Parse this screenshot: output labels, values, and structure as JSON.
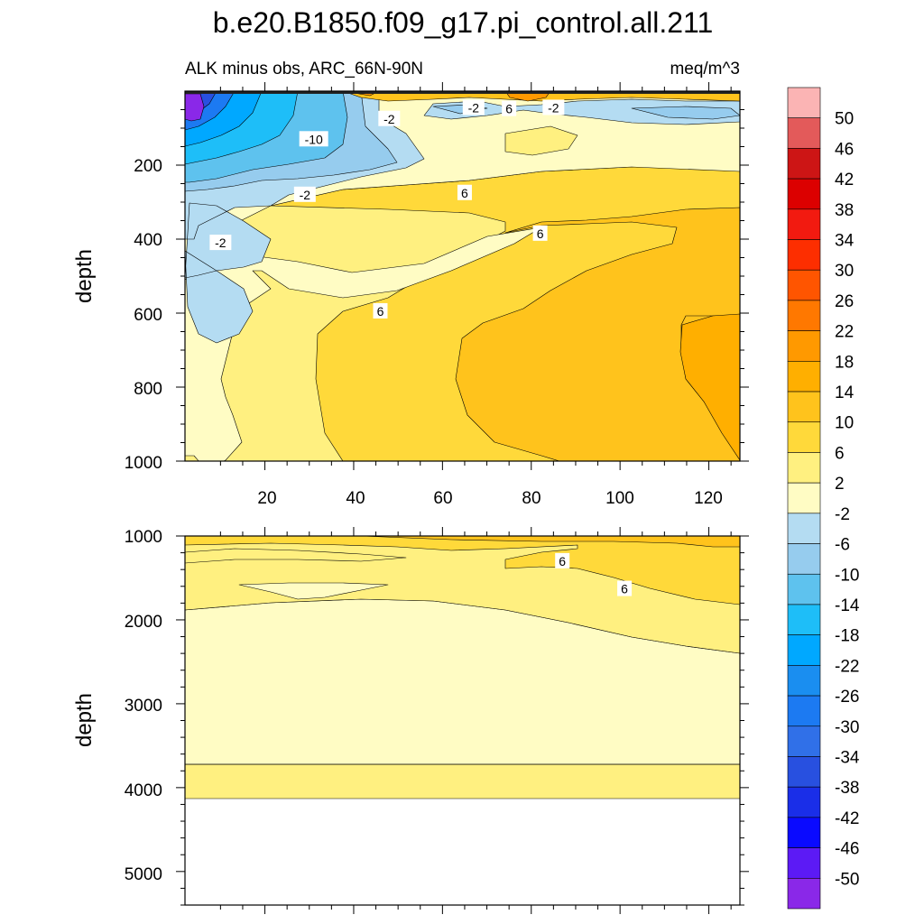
{
  "title": "b.e20.B1850.f09_g17.pi_control.all.211",
  "subtitle_left": "ALK minus obs, ARC_66N-90N",
  "subtitle_right": "meq/m^3",
  "chart_data": [
    {
      "type": "heatmap",
      "panel": "upper",
      "ylabel": "depth",
      "xlim": [
        2,
        127
      ],
      "ylim": [
        1000,
        0
      ],
      "x_ticks": [
        "20",
        "40",
        "60",
        "80",
        "100",
        "120"
      ],
      "y_ticks": [
        "200",
        "400",
        "600",
        "800",
        "1000"
      ],
      "contour_labels": [
        {
          "text": "-2",
          "x": 67,
          "y": 45
        },
        {
          "text": "6",
          "x": 75,
          "y": 48
        },
        {
          "text": "-2",
          "x": 85,
          "y": 45
        },
        {
          "text": "-2",
          "x": 48,
          "y": 75
        },
        {
          "text": "-10",
          "x": 31,
          "y": 130
        },
        {
          "text": "6",
          "x": 65,
          "y": 275
        },
        {
          "text": "-2",
          "x": 29,
          "y": 280
        },
        {
          "text": "6",
          "x": 82,
          "y": 385
        },
        {
          "text": "-2",
          "x": 10,
          "y": 410
        },
        {
          "text": "6",
          "x": 46,
          "y": 595
        }
      ]
    },
    {
      "type": "heatmap",
      "panel": "lower",
      "ylabel": "depth",
      "xlim": [
        2,
        127
      ],
      "ylim": [
        5400,
        1000
      ],
      "y_ticks": [
        "1000",
        "2000",
        "3000",
        "4000",
        "5000"
      ],
      "contour_labels": [
        {
          "text": "6",
          "x": 87,
          "y": 1300
        },
        {
          "text": "6",
          "x": 101,
          "y": 1630
        }
      ]
    }
  ],
  "colorbar": {
    "units": "meq/m^3",
    "labels": [
      "50",
      "46",
      "42",
      "38",
      "34",
      "30",
      "26",
      "22",
      "18",
      "14",
      "10",
      "6",
      "2",
      "-2",
      "-6",
      "-10",
      "-14",
      "-18",
      "-22",
      "-26",
      "-30",
      "-34",
      "-38",
      "-42",
      "-46",
      "-50"
    ],
    "colors": [
      "#fbb4b4",
      "#e35a5a",
      "#cd1515",
      "#dc0000",
      "#f21a10",
      "#fd2e00",
      "#ff5500",
      "#ff7800",
      "#ff9900",
      "#ffaf00",
      "#ffc31c",
      "#ffd93a",
      "#fff080",
      "#fffcc4",
      "#b4dcf2",
      "#96ccee",
      "#5ec2ee",
      "#1ebef8",
      "#00a8ff",
      "#1a8ef0",
      "#1c7af2",
      "#3070e8",
      "#2850e0",
      "#1a2ee8",
      "#0a0aff",
      "#5c1af5",
      "#8a28e8"
    ]
  }
}
